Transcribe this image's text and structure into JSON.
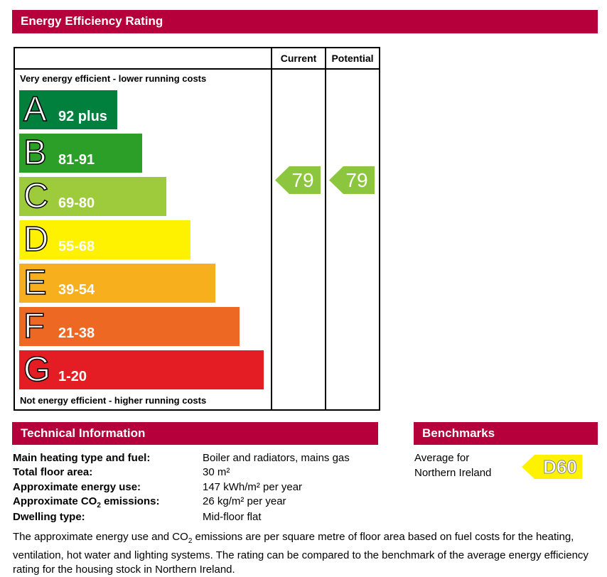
{
  "eer": {
    "title": "Energy Efficiency Rating",
    "col_current": "Current",
    "col_potential": "Potential",
    "top_note": "Very energy efficient - lower running costs",
    "bottom_note": "Not energy efficient - higher running costs",
    "bands": [
      {
        "letter": "A",
        "range": "92 plus",
        "color": "#007f3d"
      },
      {
        "letter": "B",
        "range": "81-91",
        "color": "#2c9f29"
      },
      {
        "letter": "C",
        "range": "69-80",
        "color": "#9dcb3c"
      },
      {
        "letter": "D",
        "range": "55-68",
        "color": "#fff200"
      },
      {
        "letter": "E",
        "range": "39-54",
        "color": "#f7af1d"
      },
      {
        "letter": "F",
        "range": "21-38",
        "color": "#ed6823"
      },
      {
        "letter": "G",
        "range": "1-20",
        "color": "#e31d23"
      }
    ],
    "current": {
      "value": "79",
      "band": "C",
      "color": "#8cc63f"
    },
    "potential": {
      "value": "79",
      "band": "C",
      "color": "#8cc63f"
    }
  },
  "tech": {
    "title": "Technical Information",
    "rows": [
      {
        "label": "Main heating type and fuel:",
        "value": "Boiler and radiators, mains gas"
      },
      {
        "label": "Total floor area:",
        "value": "30 m²"
      },
      {
        "label": "Approximate energy use:",
        "value": "147 kWh/m² per year"
      },
      {
        "label_pre": "Approximate CO",
        "label_sub": "2",
        "label_post": " emissions:",
        "value": "26 kg/m² per year"
      },
      {
        "label": "Dwelling type:",
        "value": "Mid-floor flat"
      }
    ],
    "footnote_pre": "The approximate energy use and CO",
    "footnote_sub": "2",
    "footnote_post": " emissions are per square metre of floor area based on fuel costs for the heating, ventilation, hot water and lighting systems. The rating can be compared to the benchmark of the average energy efficiency rating for the housing stock in Northern Ireland."
  },
  "bench": {
    "title": "Benchmarks",
    "line1": "Average for",
    "line2": "Northern Ireland",
    "value": "D60",
    "color": "#fff200"
  }
}
